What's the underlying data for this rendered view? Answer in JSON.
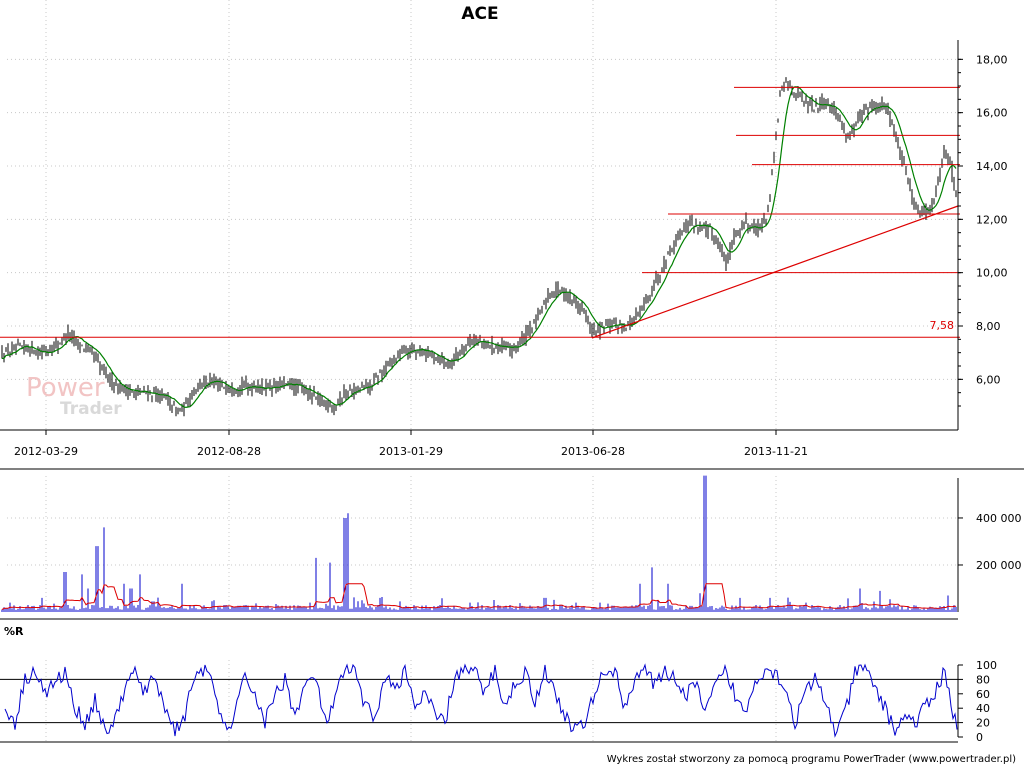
{
  "chart_data": [
    {
      "type": "ohlc",
      "title": "ACE",
      "x_dates": [
        "2012-03-29",
        "2012-08-28",
        "2013-01-29",
        "2013-06-28",
        "2013-11-21"
      ],
      "y_ticks": [
        "6,00",
        "8,00",
        "10,00",
        "12,00",
        "14,00",
        "16,00",
        "18,00"
      ],
      "ylim": [
        4.1,
        18.5
      ],
      "grid": true,
      "series": [
        {
          "kind": "price",
          "color": "#000000",
          "keypoints": [
            [
              0,
              6.9
            ],
            [
              15,
              7.1
            ],
            [
              28,
              7.2
            ],
            [
              40,
              7.0
            ],
            [
              55,
              7.2
            ],
            [
              68,
              7.7
            ],
            [
              80,
              7.3
            ],
            [
              92,
              7.0
            ],
            [
              100,
              6.5
            ],
            [
              110,
              6.0
            ],
            [
              120,
              5.7
            ],
            [
              135,
              5.5
            ],
            [
              150,
              5.5
            ],
            [
              165,
              5.3
            ],
            [
              178,
              4.8
            ],
            [
              186,
              5.0
            ],
            [
              195,
              5.7
            ],
            [
              205,
              5.9
            ],
            [
              218,
              5.8
            ],
            [
              232,
              5.7
            ],
            [
              250,
              5.75
            ],
            [
              270,
              5.7
            ],
            [
              290,
              5.8
            ],
            [
              305,
              5.6
            ],
            [
              320,
              5.2
            ],
            [
              335,
              5.0
            ],
            [
              345,
              5.5
            ],
            [
              360,
              5.6
            ],
            [
              372,
              5.8
            ],
            [
              385,
              6.4
            ],
            [
              395,
              6.8
            ],
            [
              405,
              7.1
            ],
            [
              420,
              7.05
            ],
            [
              435,
              6.9
            ],
            [
              448,
              6.6
            ],
            [
              460,
              7.0
            ],
            [
              470,
              7.5
            ],
            [
              485,
              7.3
            ],
            [
              500,
              7.2
            ],
            [
              512,
              7.1
            ],
            [
              525,
              7.6
            ],
            [
              538,
              8.3
            ],
            [
              548,
              9.1
            ],
            [
              558,
              9.4
            ],
            [
              570,
              9.1
            ],
            [
              582,
              8.7
            ],
            [
              592,
              7.8
            ],
            [
              602,
              7.9
            ],
            [
              615,
              8.1
            ],
            [
              628,
              8.0
            ],
            [
              640,
              8.5
            ],
            [
              650,
              9.2
            ],
            [
              660,
              10.0
            ],
            [
              670,
              10.8
            ],
            [
              680,
              11.5
            ],
            [
              690,
              11.9
            ],
            [
              700,
              11.7
            ],
            [
              710,
              11.6
            ],
            [
              720,
              11.0
            ],
            [
              727,
              10.3
            ],
            [
              733,
              11.3
            ],
            [
              745,
              11.9
            ],
            [
              755,
              11.6
            ],
            [
              765,
              11.9
            ],
            [
              770,
              12.9
            ],
            [
              775,
              14.7
            ],
            [
              780,
              16.6
            ],
            [
              786,
              17.2
            ],
            [
              795,
              16.8
            ],
            [
              805,
              16.4
            ],
            [
              815,
              16.2
            ],
            [
              825,
              16.5
            ],
            [
              838,
              15.9
            ],
            [
              848,
              15.1
            ],
            [
              855,
              15.5
            ],
            [
              865,
              16.1
            ],
            [
              875,
              16.2
            ],
            [
              885,
              16.3
            ],
            [
              892,
              15.7
            ],
            [
              900,
              14.5
            ],
            [
              908,
              13.5
            ],
            [
              915,
              12.5
            ],
            [
              922,
              12.3
            ],
            [
              930,
              12.4
            ],
            [
              938,
              13.3
            ],
            [
              944,
              14.5
            ],
            [
              950,
              14.2
            ],
            [
              956,
              13.0
            ]
          ]
        },
        {
          "kind": "moving-average",
          "color": "#008000"
        }
      ],
      "annotations": {
        "horizontal_lines": [
          7.58,
          10.0,
          12.2,
          14.05,
          15.15,
          16.95
        ],
        "support_line": {
          "from": [
            592,
            7.55
          ],
          "to": [
            958,
            12.5
          ]
        },
        "price_label": "7,58",
        "color": "#dd0000"
      }
    },
    {
      "type": "bar",
      "title": "",
      "y_ticks": [
        "200 000",
        "400 000"
      ],
      "ylim": [
        0,
        570000
      ],
      "series": [
        {
          "kind": "volume",
          "color": "#0000cc"
        },
        {
          "kind": "volume-average",
          "color": "#dd0000"
        }
      ],
      "spikes": [
        [
          10,
          40000
        ],
        [
          28,
          30000
        ],
        [
          42,
          60000
        ],
        [
          60,
          20000
        ],
        [
          65,
          170000
        ],
        [
          82,
          160000
        ],
        [
          88,
          100000
        ],
        [
          97,
          280000
        ],
        [
          104,
          360000
        ],
        [
          124,
          120000
        ],
        [
          131,
          100000
        ],
        [
          140,
          160000
        ],
        [
          153,
          45000
        ],
        [
          182,
          120000
        ],
        [
          225,
          30000
        ],
        [
          246,
          30000
        ],
        [
          310,
          40000
        ],
        [
          316,
          230000
        ],
        [
          330,
          210000
        ],
        [
          345,
          400000
        ],
        [
          348,
          420000
        ],
        [
          362,
          50000
        ],
        [
          380,
          60000
        ],
        [
          400,
          45000
        ],
        [
          440,
          30000
        ],
        [
          470,
          40000
        ],
        [
          510,
          30000
        ],
        [
          545,
          60000
        ],
        [
          576,
          40000
        ],
        [
          600,
          40000
        ],
        [
          640,
          120000
        ],
        [
          652,
          190000
        ],
        [
          668,
          120000
        ],
        [
          700,
          80000
        ],
        [
          705,
          580000
        ],
        [
          740,
          60000
        ],
        [
          770,
          60000
        ],
        [
          806,
          40000
        ],
        [
          860,
          100000
        ],
        [
          880,
          90000
        ],
        [
          948,
          70000
        ]
      ]
    },
    {
      "type": "line",
      "title": "%R",
      "y_ticks": [
        "0",
        "20",
        "40",
        "60",
        "80",
        "100"
      ],
      "ylim": [
        0,
        100
      ],
      "reference_lines": [
        20,
        80
      ],
      "series": [
        {
          "kind": "williams-percent-r",
          "color": "#0000cc",
          "keypoints": [
            [
              5,
              40
            ],
            [
              15,
              20
            ],
            [
              25,
              80
            ],
            [
              35,
              95
            ],
            [
              45,
              60
            ],
            [
              55,
              75
            ],
            [
              65,
              90
            ],
            [
              75,
              40
            ],
            [
              85,
              20
            ],
            [
              95,
              50
            ],
            [
              105,
              10
            ],
            [
              115,
              20
            ],
            [
              125,
              70
            ],
            [
              135,
              90
            ],
            [
              145,
              60
            ],
            [
              155,
              85
            ],
            [
              165,
              40
            ],
            [
              175,
              10
            ],
            [
              185,
              30
            ],
            [
              195,
              90
            ],
            [
              205,
              95
            ],
            [
              215,
              60
            ],
            [
              225,
              10
            ],
            [
              235,
              30
            ],
            [
              245,
              85
            ],
            [
              255,
              60
            ],
            [
              265,
              20
            ],
            [
              275,
              60
            ],
            [
              285,
              80
            ],
            [
              295,
              30
            ],
            [
              305,
              70
            ],
            [
              315,
              85
            ],
            [
              325,
              20
            ],
            [
              335,
              50
            ],
            [
              345,
              95
            ],
            [
              355,
              90
            ],
            [
              365,
              40
            ],
            [
              375,
              30
            ],
            [
              385,
              80
            ],
            [
              395,
              70
            ],
            [
              405,
              90
            ],
            [
              415,
              40
            ],
            [
              425,
              60
            ],
            [
              435,
              30
            ],
            [
              445,
              20
            ],
            [
              455,
              85
            ],
            [
              465,
              95
            ],
            [
              475,
              90
            ],
            [
              485,
              60
            ],
            [
              495,
              95
            ],
            [
              505,
              40
            ],
            [
              515,
              75
            ],
            [
              525,
              90
            ],
            [
              535,
              50
            ],
            [
              545,
              95
            ],
            [
              555,
              60
            ],
            [
              565,
              30
            ],
            [
              575,
              10
            ],
            [
              585,
              20
            ],
            [
              595,
              60
            ],
            [
              605,
              95
            ],
            [
              615,
              90
            ],
            [
              625,
              40
            ],
            [
              635,
              85
            ],
            [
              645,
              95
            ],
            [
              655,
              70
            ],
            [
              665,
              90
            ],
            [
              675,
              85
            ],
            [
              685,
              50
            ],
            [
              695,
              80
            ],
            [
              705,
              30
            ],
            [
              715,
              70
            ],
            [
              725,
              90
            ],
            [
              735,
              60
            ],
            [
              745,
              30
            ],
            [
              755,
              80
            ],
            [
              765,
              95
            ],
            [
              775,
              90
            ],
            [
              785,
              70
            ],
            [
              795,
              20
            ],
            [
              805,
              60
            ],
            [
              815,
              80
            ],
            [
              825,
              50
            ],
            [
              835,
              10
            ],
            [
              845,
              30
            ],
            [
              855,
              90
            ],
            [
              865,
              95
            ],
            [
              875,
              70
            ],
            [
              885,
              40
            ],
            [
              895,
              10
            ],
            [
              905,
              30
            ],
            [
              915,
              20
            ],
            [
              925,
              40
            ],
            [
              935,
              60
            ],
            [
              945,
              95
            ],
            [
              952,
              40
            ],
            [
              958,
              5
            ]
          ]
        }
      ]
    }
  ],
  "footer": {
    "credit": "Wykres został stworzony za pomocą programu PowerTrader (www.powertrader.pl)"
  },
  "watermark": {
    "line1": "Power",
    "line2": "Trader"
  }
}
